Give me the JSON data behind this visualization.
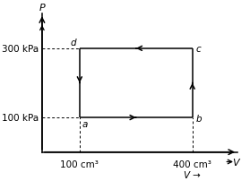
{
  "background_color": "#ffffff",
  "points": {
    "a": [
      1,
      1
    ],
    "b": [
      4,
      1
    ],
    "c": [
      4,
      3
    ],
    "d": [
      1,
      3
    ]
  },
  "p_labels": [
    "300 kPa",
    "100 kPa"
  ],
  "p_values": [
    3,
    1
  ],
  "v_labels": [
    "100 cm³",
    "400 cm³"
  ],
  "v_values": [
    1,
    4
  ],
  "xlabel": "V",
  "ylabel": "P",
  "line_color": "#000000",
  "dashed_color": "#000000",
  "cycle_labels": [
    "a",
    "b",
    "c",
    "d"
  ],
  "xlim": [
    -0.3,
    5.5
  ],
  "ylim": [
    -0.6,
    4.2
  ],
  "figsize": [
    2.79,
    2.03
  ],
  "dpi": 100,
  "fontsize": 7.5,
  "lw": 1.1,
  "axis_arrow_lw": 1.1,
  "arrow_mutation_scale": 9
}
